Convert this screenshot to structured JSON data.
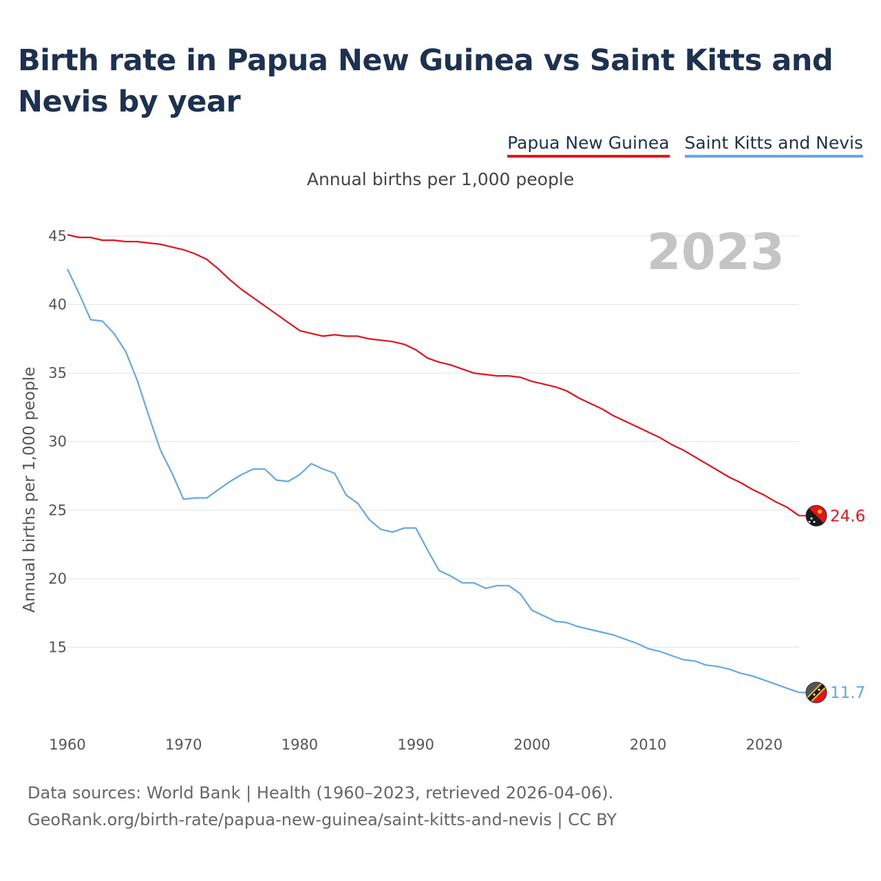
{
  "title": "Birth rate in Papua New Guinea vs Saint Kitts and Nevis by year",
  "subtitle": "Annual births per 1,000 people",
  "legend": {
    "papua_new_guinea": "Papua New Guinea",
    "saint_kitts_and_nevis": "Saint Kitts and Nevis"
  },
  "colors": {
    "papua_new_guinea": "#e8111a",
    "saint_kitts_and_nevis": "#62a8e8",
    "title": "#1d3150"
  },
  "footer": {
    "line1": "Data sources: World Bank | Health (1960–2023, retrieved 2026-04-06).",
    "line2": "GeoRank.org/birth-rate/papua-new-guinea/saint-kitts-and-nevis | CC BY"
  },
  "chart_data": {
    "type": "line",
    "title": "Birth rate in Papua New Guinea vs Saint Kitts and Nevis by year",
    "xlabel": "",
    "ylabel": "Annual births per 1,000 people",
    "year_display": "2023",
    "xlim": [
      1960,
      2023
    ],
    "ylim": [
      10,
      45
    ],
    "x_ticks": [
      1960,
      1970,
      1980,
      1990,
      2000,
      2010,
      2020
    ],
    "y_ticks": [
      15,
      20,
      25,
      30,
      35,
      40,
      45
    ],
    "grid": true,
    "legend_position": "top-right",
    "series": [
      {
        "name": "Papua New Guinea",
        "color": "#e8111a",
        "end_label": "24.6",
        "x": [
          1960,
          1961,
          1962,
          1963,
          1964,
          1965,
          1966,
          1967,
          1968,
          1969,
          1970,
          1971,
          1972,
          1973,
          1974,
          1975,
          1976,
          1977,
          1978,
          1979,
          1980,
          1981,
          1982,
          1983,
          1984,
          1985,
          1986,
          1987,
          1988,
          1989,
          1990,
          1991,
          1992,
          1993,
          1994,
          1995,
          1996,
          1997,
          1998,
          1999,
          2000,
          2001,
          2002,
          2003,
          2004,
          2005,
          2006,
          2007,
          2008,
          2009,
          2010,
          2011,
          2012,
          2013,
          2014,
          2015,
          2016,
          2017,
          2018,
          2019,
          2020,
          2021,
          2022,
          2023
        ],
        "values": [
          45.1,
          44.9,
          44.9,
          44.7,
          44.7,
          44.6,
          44.6,
          44.5,
          44.4,
          44.2,
          44.0,
          43.7,
          43.3,
          42.6,
          41.8,
          41.1,
          40.5,
          39.9,
          39.3,
          38.7,
          38.1,
          37.9,
          37.7,
          37.8,
          37.7,
          37.7,
          37.5,
          37.4,
          37.3,
          37.1,
          36.7,
          36.1,
          35.8,
          35.6,
          35.3,
          35.0,
          34.9,
          34.8,
          34.8,
          34.7,
          34.4,
          34.2,
          34.0,
          33.7,
          33.2,
          32.8,
          32.4,
          31.9,
          31.5,
          31.1,
          30.7,
          30.3,
          29.8,
          29.4,
          28.9,
          28.4,
          27.9,
          27.4,
          27.0,
          26.5,
          26.1,
          25.6,
          25.2,
          24.6
        ]
      },
      {
        "name": "Saint Kitts and Nevis",
        "color": "#62a8e8",
        "end_label": "11.7",
        "x": [
          1960,
          1961,
          1962,
          1963,
          1964,
          1965,
          1966,
          1967,
          1968,
          1969,
          1970,
          1971,
          1972,
          1973,
          1974,
          1975,
          1976,
          1977,
          1978,
          1979,
          1980,
          1981,
          1982,
          1983,
          1984,
          1985,
          1986,
          1987,
          1988,
          1989,
          1990,
          1991,
          1992,
          1993,
          1994,
          1995,
          1996,
          1997,
          1998,
          1999,
          2000,
          2001,
          2002,
          2003,
          2004,
          2005,
          2006,
          2007,
          2008,
          2009,
          2010,
          2011,
          2012,
          2013,
          2014,
          2015,
          2016,
          2017,
          2018,
          2019,
          2020,
          2021,
          2022,
          2023
        ],
        "values": [
          42.6,
          40.8,
          38.9,
          38.8,
          37.9,
          36.6,
          34.5,
          31.9,
          29.4,
          27.7,
          25.8,
          25.9,
          25.9,
          26.5,
          27.1,
          27.6,
          28.0,
          28.0,
          27.2,
          27.1,
          27.6,
          28.4,
          28.0,
          27.7,
          26.1,
          25.5,
          24.3,
          23.6,
          23.4,
          23.7,
          23.7,
          22.1,
          20.6,
          20.2,
          19.7,
          19.7,
          19.3,
          19.5,
          19.5,
          18.9,
          17.7,
          17.3,
          16.9,
          16.8,
          16.5,
          16.3,
          16.1,
          15.9,
          15.6,
          15.3,
          14.9,
          14.7,
          14.4,
          14.1,
          14.0,
          13.7,
          13.6,
          13.4,
          13.1,
          12.9,
          12.6,
          12.3,
          12.0,
          11.7
        ]
      }
    ]
  }
}
